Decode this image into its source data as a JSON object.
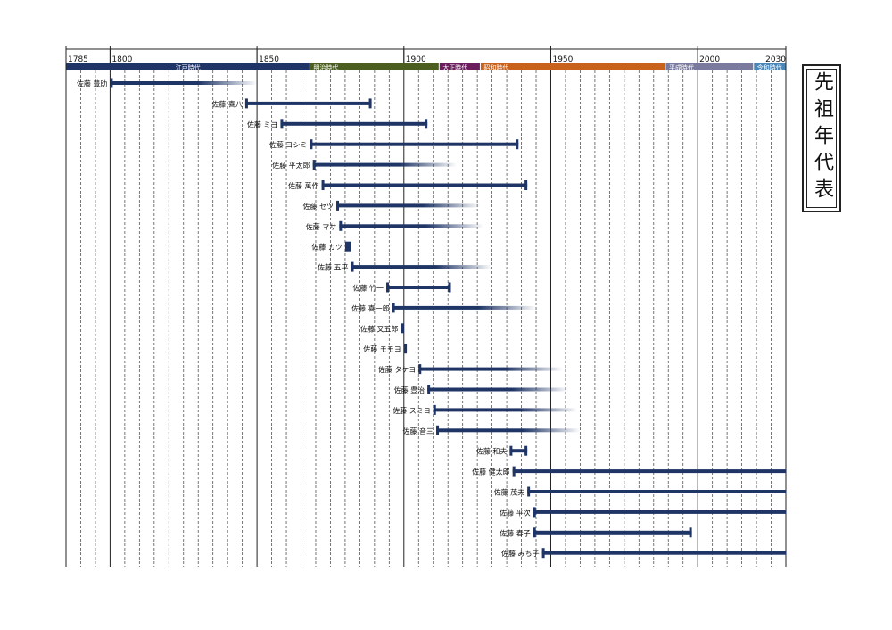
{
  "title": "先祖年代表",
  "chart_data": {
    "type": "timeline",
    "x_range": [
      1785,
      2030
    ],
    "x_ticks": [
      1785,
      1800,
      1850,
      1900,
      1950,
      2000,
      2030
    ],
    "eras": [
      {
        "name": "江戸時代",
        "start": 1785,
        "end": 1868,
        "color": "#1f3566"
      },
      {
        "name": "明治時代",
        "start": 1868,
        "end": 1912,
        "color": "#4b5e1f"
      },
      {
        "name": "大正時代",
        "start": 1912,
        "end": 1926,
        "color": "#6b1d5e"
      },
      {
        "name": "昭和時代",
        "start": 1926,
        "end": 1989,
        "color": "#c8611b"
      },
      {
        "name": "平成時代",
        "start": 1989,
        "end": 2019,
        "color": "#7a7a9e"
      },
      {
        "name": "令和時代",
        "start": 2019,
        "end": 2030,
        "color": "#4a86b8"
      }
    ],
    "people": [
      {
        "name": "佐藤 豊助",
        "start": 1800,
        "end": 1850,
        "fade": true,
        "end_cap": false
      },
      {
        "name": "佐藤 喜八",
        "start": 1846,
        "end": 1889,
        "fade": false,
        "end_cap": true
      },
      {
        "name": "佐藤 ミヨ",
        "start": 1858,
        "end": 1908,
        "fade": false,
        "end_cap": true
      },
      {
        "name": "佐藤 ヨシミ",
        "start": 1868,
        "end": 1939,
        "fade": false,
        "end_cap": true
      },
      {
        "name": "佐藤 平太郎",
        "start": 1869,
        "end": 1918,
        "fade": true,
        "end_cap": false
      },
      {
        "name": "佐藤 萬作",
        "start": 1872,
        "end": 1942,
        "fade": false,
        "end_cap": true
      },
      {
        "name": "佐藤 セツ",
        "start": 1877,
        "end": 1926,
        "fade": true,
        "end_cap": false
      },
      {
        "name": "佐藤 マサ",
        "start": 1878,
        "end": 1927,
        "fade": true,
        "end_cap": false
      },
      {
        "name": "佐藤 カツ",
        "start": 1880,
        "end": 1882,
        "fade": false,
        "end_cap": false
      },
      {
        "name": "佐藤 五平",
        "start": 1882,
        "end": 1930,
        "fade": true,
        "end_cap": false
      },
      {
        "name": "佐藤 竹一",
        "start": 1894,
        "end": 1916,
        "fade": false,
        "end_cap": true
      },
      {
        "name": "佐藤 喜一郎",
        "start": 1896,
        "end": 1945,
        "fade": true,
        "end_cap": false
      },
      {
        "name": "佐藤 又五郎",
        "start": 1899,
        "end": 1900,
        "fade": false,
        "end_cap": false
      },
      {
        "name": "佐藤 モモヨ",
        "start": 1900,
        "end": 1901,
        "fade": false,
        "end_cap": false
      },
      {
        "name": "佐藤 タケヨ",
        "start": 1905,
        "end": 1954,
        "fade": true,
        "end_cap": false
      },
      {
        "name": "佐藤 豊治",
        "start": 1908,
        "end": 1956,
        "fade": true,
        "end_cap": false
      },
      {
        "name": "佐藤 スミヨ",
        "start": 1910,
        "end": 1959,
        "fade": true,
        "end_cap": false
      },
      {
        "name": "佐藤 音三",
        "start": 1911,
        "end": 1960,
        "fade": true,
        "end_cap": false
      },
      {
        "name": "佐藤 和夫",
        "start": 1936,
        "end": 1942,
        "fade": false,
        "end_cap": true
      },
      {
        "name": "佐藤 健太郎",
        "start": 1937,
        "end": 2030,
        "fade": false,
        "end_cap": false
      },
      {
        "name": "佐藤 茂夫",
        "start": 1942,
        "end": 2030,
        "fade": false,
        "end_cap": false
      },
      {
        "name": "佐藤 平次",
        "start": 1944,
        "end": 2030,
        "fade": false,
        "end_cap": false
      },
      {
        "name": "佐藤 春子",
        "start": 1944,
        "end": 1998,
        "fade": false,
        "end_cap": true
      },
      {
        "name": "佐藤 みち子",
        "start": 1947,
        "end": 2030,
        "fade": false,
        "end_cap": false
      }
    ],
    "bar_color": "#1f3566"
  }
}
